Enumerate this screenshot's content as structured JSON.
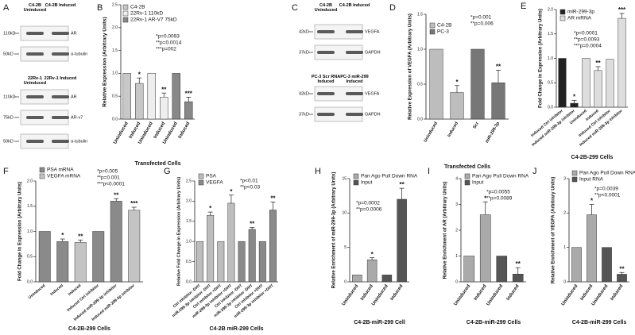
{
  "blots": [
    {
      "letter": "A",
      "lanes": [
        "C4-2B Uninduced",
        "C4-2B Induced"
      ],
      "rows": [
        {
          "size": "110kD",
          "label": "AR"
        },
        {
          "size": "50kD",
          "label": "α-tubulin"
        }
      ]
    },
    {
      "lanes": [
        "22Rv-1 Uninduced",
        "22Rv-1 Induced"
      ],
      "rows": [
        {
          "size": "110kD",
          "label": "AR"
        },
        {
          "size": "75kD",
          "label": "AR-v7"
        },
        {
          "size": "50kD",
          "label": "α-tubulin"
        }
      ]
    },
    {
      "letter": "C",
      "lanes": [
        "C4-2B Uninduced",
        "C4-2B Induced"
      ],
      "rows": [
        {
          "size": "42kD",
          "label": "VEGFA"
        },
        {
          "size": "37kD",
          "label": "GAPDH"
        }
      ]
    },
    {
      "lanes": [
        "PC-3 Scr RNA Induced",
        "PC-3 miR-299 Induced"
      ],
      "rows": [
        {
          "size": "42kD",
          "label": "VEGFA"
        },
        {
          "size": "37kD",
          "label": "GAPDH"
        }
      ]
    }
  ],
  "chart_data": [
    {
      "type": "bar",
      "letter": "B",
      "ylabel": "Relative Expression (Arbitrary Units)",
      "xlabel": "Transfected Cells",
      "categories": [
        "Uninduced",
        "Induced",
        "Uninduced",
        "Induced",
        "Uninduced",
        "Induced"
      ],
      "series": [
        {
          "name": "C4-2B",
          "color": "#c8c8c8",
          "values": [
            1,
            0.78,
            null,
            null,
            null,
            null
          ],
          "errors": [
            null,
            0.12,
            null,
            null,
            null,
            null
          ],
          "sig": [
            null,
            "*",
            null,
            null,
            null,
            null
          ]
        },
        {
          "name": "22Rv-1 110kD",
          "color": "#eeeeee",
          "values": [
            null,
            null,
            1,
            0.48,
            null,
            null
          ],
          "errors": [
            null,
            null,
            null,
            0.09,
            null,
            null
          ],
          "sig": [
            null,
            null,
            null,
            "**",
            null,
            null
          ]
        },
        {
          "name": "22Rv-1 AR-V7 75kD",
          "color": "#888888",
          "values": [
            null,
            null,
            null,
            null,
            1,
            0.38
          ],
          "errors": [
            null,
            null,
            null,
            null,
            null,
            0.1
          ],
          "sig": [
            null,
            null,
            null,
            null,
            null,
            "***"
          ]
        }
      ],
      "annotations": [
        "*p=0.0093",
        "**p=0.0014",
        "***p=002"
      ],
      "ylim": [
        0,
        2.5
      ],
      "yticks": [
        {
          "value": 0,
          "label": "0.0"
        },
        {
          "value": 0.5,
          "label": "0.5"
        },
        {
          "value": 1,
          "label": "1.0"
        },
        {
          "value": 1.5,
          "label": "1.5"
        },
        {
          "value": 2,
          "label": "2.0"
        },
        {
          "value": 2.5,
          "label": "2.5"
        }
      ]
    },
    {
      "type": "bar",
      "letter": "D",
      "ylabel": "Relative Expression of VEGFA (Arbitrary Units)",
      "xlabel": "Transfected Cells",
      "categories": [
        "Uninduced",
        "Induced",
        "Scr",
        "miR-299-3p"
      ],
      "series": [
        {
          "name": "C4-2B",
          "color": "#bdbdbd",
          "values": [
            1,
            0.38,
            null,
            null
          ],
          "errors": [
            null,
            0.1,
            null,
            null
          ],
          "sig": [
            null,
            "*",
            null,
            null
          ]
        },
        {
          "name": "PC-3",
          "color": "#777777",
          "values": [
            null,
            null,
            1,
            0.52
          ],
          "errors": [
            null,
            null,
            null,
            0.18
          ],
          "sig": [
            null,
            null,
            null,
            "**"
          ]
        }
      ],
      "annotations": [
        "*p=0.001",
        "**p=0.006"
      ],
      "ylim": [
        0,
        1.5
      ],
      "yticks": [
        {
          "value": 0,
          "label": "0.0"
        },
        {
          "value": 0.5,
          "label": "0.5"
        },
        {
          "value": 1,
          "label": "1.0"
        },
        {
          "value": 1.5,
          "label": "1.5"
        }
      ]
    },
    {
      "type": "bar",
      "letter": "E",
      "ylabel": "Fold Change in Expression (Arbitrary Units)",
      "xlabel": "C4-2B-299 Cells",
      "categories": [
        "Induced Ctrl inhibitor",
        "Induced miR-299-3p inhibitor",
        "Uninduced",
        "Induced",
        "Induced Ctrl inhibitor",
        "Induced miR-299-3p inhibitor"
      ],
      "series": [
        {
          "name": "miR-299-3p",
          "color": "#222222",
          "values": [
            1,
            0.08,
            null,
            null,
            null,
            null
          ],
          "errors": [
            null,
            0.06,
            null,
            null,
            null,
            null
          ],
          "sig": [
            null,
            "*",
            null,
            null,
            null,
            null
          ]
        },
        {
          "name": "AR mRNA",
          "color": "#dddddd",
          "values": [
            null,
            null,
            1,
            0.75,
            0.98,
            1.82
          ],
          "errors": [
            null,
            null,
            null,
            0.08,
            null,
            0.1
          ],
          "sig": [
            null,
            null,
            null,
            "**",
            null,
            "***"
          ]
        }
      ],
      "annotations": [
        "*p<0.0001",
        "**p=0.0093",
        "***p=0.0004"
      ],
      "ylim": [
        0,
        2
      ],
      "yticks": [
        {
          "value": 0,
          "label": "0.0"
        },
        {
          "value": 0.5,
          "label": "0.5"
        },
        {
          "value": 1,
          "label": "1.0"
        },
        {
          "value": 1.5,
          "label": "1.5"
        },
        {
          "value": 2,
          "label": "2.0"
        }
      ]
    },
    {
      "type": "bar",
      "letter": "F",
      "ylabel": "Fold Change in Expression (Arbitrary Units)",
      "xlabel": "C4-2B-299 Cells",
      "categories": [
        "Uninduced",
        "Induced",
        "Induced",
        "Induced Ctrl inhibitor",
        "Induced miR-299-3p inhibitor",
        "Induced miR-299-3p inhibitor"
      ],
      "series": [
        {
          "name": "PSA mRNA",
          "color": "#8a8a8a",
          "values": [
            1,
            0.8,
            null,
            1,
            1.6,
            null
          ],
          "errors": [
            null,
            0.05,
            null,
            null,
            0.05,
            null
          ],
          "sig": [
            null,
            "*",
            null,
            null,
            "**",
            null
          ]
        },
        {
          "name": "VEGFA mRNA",
          "color": "#c4c4c4",
          "values": [
            null,
            null,
            0.78,
            null,
            null,
            1.42
          ],
          "errors": [
            null,
            null,
            0.05,
            null,
            null,
            0.06
          ],
          "sig": [
            null,
            null,
            "**",
            null,
            null,
            "***"
          ]
        }
      ],
      "annotations": [
        "*p=0.005",
        "**p=0.001",
        "***p<0.0001"
      ],
      "ylim": [
        0,
        2
      ],
      "yticks": [
        {
          "value": 0,
          "label": "0.0"
        },
        {
          "value": 0.5,
          "label": "0.5"
        },
        {
          "value": 1,
          "label": "1.0"
        },
        {
          "value": 1.5,
          "label": "1.5"
        },
        {
          "value": 2,
          "label": "2.0"
        }
      ]
    },
    {
      "type": "bar",
      "letter": "G",
      "ylabel": "Relative Fold Change in Expression (Arbitrary Units)",
      "xlabel": "C4-2B miR-299 Cells",
      "categories": [
        "Ctrl inhibitor -DHT",
        "miR-299-3p inhibitor -DHT",
        "Ctrl inhibitor +DHT",
        "miR-299-3p inhibitor +DHT",
        "Ctrl inhibitor -DHT",
        "miR-299-3p inhibitor -DHT",
        "Ctrl inhibitor +DHT",
        "miR-299-3p inhibitor +DHT"
      ],
      "series": [
        {
          "name": "PSA",
          "color": "#bdbdbd",
          "values": [
            1,
            1.65,
            1,
            1.95,
            null,
            null,
            null,
            null
          ],
          "errors": [
            null,
            0.08,
            null,
            0.2,
            null,
            null,
            null,
            null
          ],
          "sig": [
            null,
            "*",
            null,
            "*",
            null,
            null,
            null,
            null
          ]
        },
        {
          "name": "VEGFA",
          "color": "#8a8a8a",
          "values": [
            null,
            null,
            null,
            null,
            1,
            1.3,
            1,
            1.78
          ],
          "errors": [
            null,
            null,
            null,
            null,
            null,
            0.05,
            null,
            0.2
          ],
          "sig": [
            null,
            null,
            null,
            null,
            null,
            "**",
            null,
            "**"
          ]
        }
      ],
      "annotations": [
        "*p<0.01",
        "**p<0.03"
      ],
      "ylim": [
        0,
        2.5
      ],
      "yticks": [
        {
          "value": 0,
          "label": "0.0"
        },
        {
          "value": 0.5,
          "label": "0.5"
        },
        {
          "value": 1,
          "label": "1.0"
        },
        {
          "value": 1.5,
          "label": "1.5"
        },
        {
          "value": 2,
          "label": "2.0"
        },
        {
          "value": 2.5,
          "label": "2.5"
        }
      ]
    },
    {
      "type": "bar",
      "letter": "H",
      "ylabel": "Relative Enrichment of miR-299-3p (Arbitrary Units)",
      "xlabel": "C4-2B-miR-299 Cell",
      "categories": [
        "Uninduced",
        "Induced",
        "Uninduced",
        "Induced"
      ],
      "series": [
        {
          "name": "Pan Ago Pull Down RNA",
          "color": "#aaaaaa",
          "values": [
            1,
            3.2,
            null,
            null
          ],
          "errors": [
            null,
            0.3,
            null,
            null
          ],
          "sig": [
            null,
            "*",
            null,
            null
          ]
        },
        {
          "name": "Input",
          "color": "#555555",
          "values": [
            null,
            null,
            1,
            12
          ],
          "errors": [
            null,
            null,
            null,
            1.6
          ],
          "sig": [
            null,
            null,
            null,
            "**"
          ]
        }
      ],
      "annotations": [
        "*p=0.0002",
        "**p=0.0006"
      ],
      "ylim": [
        0,
        15
      ],
      "yticks": [
        0,
        5,
        10,
        15
      ]
    },
    {
      "type": "bar",
      "letter": "I",
      "ylabel": "Relative Enrichment of AR (Arbitrary Units)",
      "xlabel": "C4-2B-miR-299 Cells",
      "categories": [
        "Uninduced",
        "Induced",
        "Uninduced",
        "Induced"
      ],
      "series": [
        {
          "name": "Pan Ago Pull Down RNA",
          "color": "#aaaaaa",
          "values": [
            1,
            2.6,
            null,
            null
          ],
          "errors": [
            null,
            0.5,
            null,
            null
          ],
          "sig": [
            null,
            "*",
            null,
            null
          ]
        },
        {
          "name": "Input",
          "color": "#555555",
          "values": [
            null,
            null,
            1,
            0.3
          ],
          "errors": [
            null,
            null,
            null,
            0.25
          ],
          "sig": [
            null,
            null,
            null,
            "**"
          ]
        }
      ],
      "annotations": [
        "*p=0.0055",
        "**p=0.0089"
      ],
      "ylim": [
        0,
        4
      ],
      "yticks": [
        0,
        1,
        2,
        3,
        4
      ]
    },
    {
      "type": "bar",
      "letter": "J",
      "ylabel": "Relative Enrichment of VEGFA (Arbitrary Units)",
      "xlabel": "C4-2B-miR-299 Cells",
      "categories": [
        "Uninduced",
        "Induced",
        "Uninduced",
        "Induced"
      ],
      "series": [
        {
          "name": "Pan Ago Pull Down RNA",
          "color": "#aaaaaa",
          "values": [
            1,
            1.95,
            null,
            null
          ],
          "errors": [
            null,
            0.3,
            null,
            null
          ],
          "sig": [
            null,
            "*",
            null,
            null
          ]
        },
        {
          "name": "Input RNA",
          "color": "#555555",
          "values": [
            null,
            null,
            1,
            0.22
          ],
          "errors": [
            null,
            null,
            null,
            0.05
          ],
          "sig": [
            null,
            null,
            null,
            "**"
          ]
        }
      ],
      "annotations": [
        "*p=0.0039",
        "**p<0.0001"
      ],
      "ylim": [
        0,
        3
      ],
      "yticks": [
        0,
        1,
        2,
        3
      ]
    }
  ]
}
